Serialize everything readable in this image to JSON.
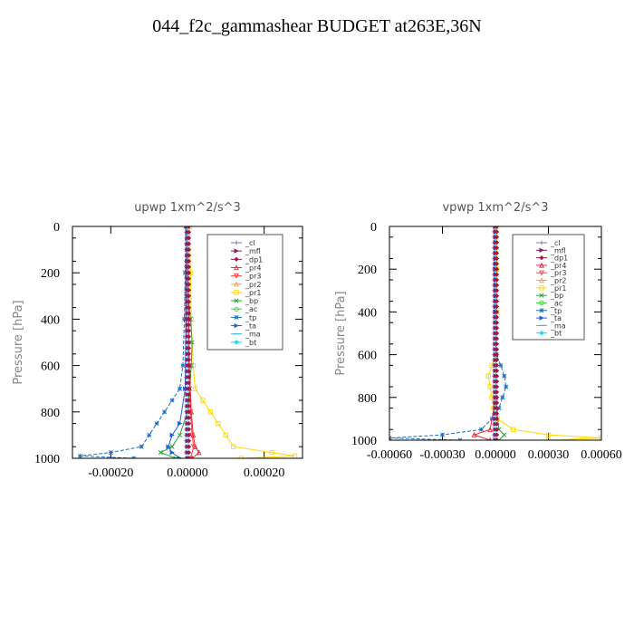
{
  "figure": {
    "title": "044_f2c_gammashear  BUDGET at263E,36N"
  },
  "legend": [
    {
      "name": "_cl",
      "color": "#8a6fb5",
      "marker": "plus"
    },
    {
      "name": "_mfl",
      "color": "#8b1a6b",
      "marker": "tri-right"
    },
    {
      "name": "_dp1",
      "color": "#a0184a",
      "marker": "diamond"
    },
    {
      "name": "_pr4",
      "color": "#e8283a",
      "marker": "tri-up"
    },
    {
      "name": "_pr3",
      "color": "#ff4040",
      "marker": "tri-down"
    },
    {
      "name": "_pr2",
      "color": "#ffa040",
      "marker": "tri-up"
    },
    {
      "name": "_pr1",
      "color": "#ffd700",
      "marker": "square"
    },
    {
      "name": "_bp",
      "color": "#2aa040",
      "marker": "cross"
    },
    {
      "name": "_ac",
      "color": "#40d040",
      "marker": "circle"
    },
    {
      "name": "_tp",
      "color": "#2070c0",
      "marker": "star"
    },
    {
      "name": "_ta",
      "color": "#2060e0",
      "marker": "tri-right"
    },
    {
      "name": "_ma",
      "color": "#40b0e0",
      "marker": "line"
    },
    {
      "name": "_bt",
      "color": "#00e0ff",
      "marker": "diamond"
    }
  ],
  "chart_data": [
    {
      "type": "line",
      "title": "upwp   1xm^2/s^3",
      "ylabel": "Pressure [hPa]",
      "xlim": [
        -0.0003,
        0.0003
      ],
      "ylim": [
        1000,
        0
      ],
      "xticks": [
        -0.0002,
        0.0,
        0.0002
      ],
      "xticklabels": [
        "-0.00020",
        "0.00000",
        "0.00020"
      ],
      "yticks": [
        0,
        200,
        400,
        600,
        800,
        1000
      ],
      "series": [
        {
          "name": "_pr1",
          "y": [
            0,
            200,
            400,
            600,
            700,
            750,
            800,
            850,
            900,
            950,
            975,
            990,
            1000
          ],
          "x": [
            5e-06,
            8e-06,
            1e-05,
            1.5e-05,
            2e-05,
            4e-05,
            6e-05,
            8e-05,
            0.0001,
            0.00012,
            0.00022,
            0.00028,
            0.00014
          ]
        },
        {
          "name": "_tp",
          "y": [
            0,
            200,
            400,
            600,
            700,
            750,
            800,
            850,
            900,
            950,
            975,
            990,
            1000
          ],
          "x": [
            -5e-06,
            -6e-06,
            -8e-06,
            -1.2e-05,
            -2e-05,
            -4e-05,
            -6e-05,
            -8e-05,
            -0.0001,
            -0.00012,
            -0.0002,
            -0.00028,
            -0.00014
          ]
        },
        {
          "name": "_ta",
          "y": [
            0,
            400,
            700,
            850,
            900,
            950,
            975,
            1000
          ],
          "x": [
            -2e-06,
            -4e-06,
            -6e-06,
            -2e-05,
            -4e-05,
            -5e-05,
            -4e-05,
            -2e-05
          ]
        },
        {
          "name": "_bp",
          "y": [
            0,
            200,
            400,
            500,
            600,
            700,
            800,
            900,
            950,
            975,
            1000
          ],
          "x": [
            0,
            -5e-06,
            8e-06,
            1.2e-05,
            1e-05,
            6e-06,
            0,
            -2e-05,
            -4e-05,
            -7e-05,
            -3e-05
          ]
        },
        {
          "name": "_pr4",
          "y": [
            0,
            400,
            600,
            800,
            900,
            950,
            975,
            1000
          ],
          "x": [
            0,
            3e-06,
            5e-06,
            1e-05,
            1.5e-05,
            2e-05,
            3e-05,
            1.2e-05
          ]
        },
        {
          "name": "_pr3",
          "y": [
            0,
            400,
            600,
            800,
            900,
            950,
            1000
          ],
          "x": [
            0,
            -3e-06,
            4e-06,
            8e-06,
            1.2e-05,
            1.6e-05,
            8e-06
          ]
        },
        {
          "name": "_cl",
          "y": [
            0,
            1000
          ],
          "x": [
            0,
            0
          ]
        },
        {
          "name": "_mfl",
          "y": [
            0,
            1000
          ],
          "x": [
            0,
            0
          ]
        },
        {
          "name": "_dp1",
          "y": [
            0,
            1000
          ],
          "x": [
            0,
            0
          ]
        },
        {
          "name": "_pr2",
          "y": [
            0,
            1000
          ],
          "x": [
            0,
            0
          ]
        },
        {
          "name": "_ac",
          "y": [
            0,
            1000
          ],
          "x": [
            0,
            0
          ]
        },
        {
          "name": "_ma",
          "y": [
            0,
            1000
          ],
          "x": [
            0,
            0
          ]
        },
        {
          "name": "_bt",
          "y": [
            0,
            1000
          ],
          "x": [
            0,
            0
          ]
        }
      ]
    },
    {
      "type": "line",
      "title": "vpwp   1xm^2/s^3",
      "ylabel": "Pressure [hPa]",
      "xlim": [
        -0.0006,
        0.0006
      ],
      "ylim": [
        1000,
        0
      ],
      "xticks": [
        -0.0006,
        -0.0003,
        0.0,
        0.0003,
        0.0006
      ],
      "xticklabels": [
        "-0.00060",
        "-0.00030",
        "0.00000",
        "0.00030",
        "0.00060"
      ],
      "yticks": [
        0,
        200,
        400,
        600,
        800,
        1000
      ],
      "series": [
        {
          "name": "_pr1",
          "y": [
            0,
            200,
            400,
            600,
            650,
            700,
            750,
            800,
            850,
            900,
            950,
            975,
            990,
            1000
          ],
          "x": [
            5e-06,
            8e-06,
            6e-06,
            2e-06,
            -2e-05,
            -4e-05,
            -3e-05,
            -2e-05,
            -1e-05,
            1e-05,
            0.0001,
            0.0003,
            0.0006,
            0.0003
          ]
        },
        {
          "name": "_tp",
          "y": [
            0,
            200,
            400,
            600,
            650,
            700,
            750,
            800,
            850,
            900,
            950,
            975,
            990,
            1000
          ],
          "x": [
            -3e-06,
            -4e-06,
            -3e-06,
            5e-06,
            3e-05,
            5e-05,
            6e-05,
            4e-05,
            2e-05,
            -2e-05,
            -8e-05,
            -0.0003,
            -0.0006,
            -0.0002
          ]
        },
        {
          "name": "_pr4",
          "y": [
            0,
            800,
            950,
            975,
            1000
          ],
          "x": [
            0,
            2e-06,
            -3e-05,
            -0.00012,
            -3e-05
          ]
        },
        {
          "name": "_bp",
          "y": [
            0,
            800,
            950,
            975,
            1000
          ],
          "x": [
            0,
            0,
            2e-05,
            5e-05,
            2e-05
          ]
        },
        {
          "name": "_cl",
          "y": [
            0,
            1000
          ],
          "x": [
            0,
            0
          ]
        },
        {
          "name": "_mfl",
          "y": [
            0,
            1000
          ],
          "x": [
            0,
            0
          ]
        },
        {
          "name": "_dp1",
          "y": [
            0,
            1000
          ],
          "x": [
            0,
            0
          ]
        },
        {
          "name": "_pr3",
          "y": [
            0,
            1000
          ],
          "x": [
            0,
            0
          ]
        },
        {
          "name": "_pr2",
          "y": [
            0,
            1000
          ],
          "x": [
            0,
            0
          ]
        },
        {
          "name": "_ac",
          "y": [
            0,
            1000
          ],
          "x": [
            0,
            0
          ]
        },
        {
          "name": "_ta",
          "y": [
            0,
            1000
          ],
          "x": [
            0,
            0
          ]
        },
        {
          "name": "_ma",
          "y": [
            0,
            1000
          ],
          "x": [
            0,
            0
          ]
        },
        {
          "name": "_bt",
          "y": [
            0,
            1000
          ],
          "x": [
            0,
            0
          ]
        }
      ]
    }
  ]
}
